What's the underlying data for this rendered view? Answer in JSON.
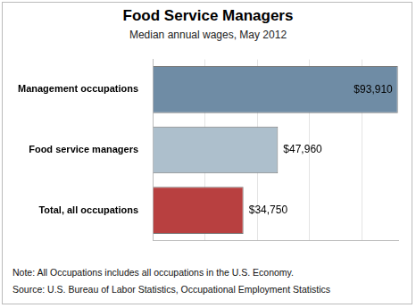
{
  "chart_data": {
    "type": "bar",
    "title": "Food Service Managers",
    "subtitle": "Median annual wages, May 2012",
    "orientation": "horizontal",
    "categories": [
      "Management occupations",
      "Food service managers",
      "Total, all occupations"
    ],
    "values": [
      93910,
      47960,
      34750
    ],
    "value_labels": [
      "$93,910",
      "$47,960",
      "$34,750"
    ],
    "data_labels": true,
    "colors": [
      "#6f8ca5",
      "#adbfcc",
      "#b84040"
    ],
    "xlim": [
      0,
      94000
    ],
    "xticks": [
      0,
      20000,
      40000,
      60000,
      80000
    ],
    "grid": true,
    "tick_labels": "y",
    "notes": [
      "Note: All Occupations includes all occupations in the U.S. Economy.",
      "Source: U.S. Bureau of Labor Statistics, Occupational Employment Statistics"
    ]
  }
}
